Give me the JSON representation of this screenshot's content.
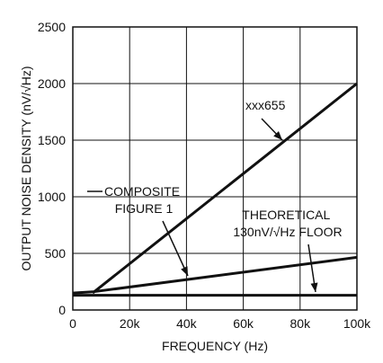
{
  "chart_data": {
    "type": "line",
    "title": "",
    "xlabel": "FREQUENCY (Hz)",
    "ylabel": "OUTPUT NOISE DENSITY (nV/√Hz)",
    "xlim": [
      0,
      100000
    ],
    "ylim": [
      0,
      2500
    ],
    "grid": true,
    "x_ticks": [
      0,
      20000,
      40000,
      60000,
      80000,
      100000
    ],
    "x_tick_labels": [
      "0",
      "20k",
      "40k",
      "60k",
      "80k",
      "100k"
    ],
    "y_ticks": [
      0,
      500,
      1000,
      1500,
      2000,
      2500
    ],
    "y_tick_labels": [
      "0",
      "500",
      "1000",
      "1500",
      "2000",
      "2500"
    ],
    "series": [
      {
        "name": "xxx655",
        "x": [
          7000,
          100000
        ],
        "y": [
          150,
          2000
        ]
      },
      {
        "name": "COMPOSITE FIGURE 1",
        "x": [
          0,
          7000,
          100000
        ],
        "y": [
          150,
          160,
          465
        ]
      },
      {
        "name": "THEORETICAL 130nV/√Hz FLOOR",
        "x": [
          0,
          100000
        ],
        "y": [
          130,
          130
        ]
      }
    ],
    "annotations": [
      {
        "name": "label-xxx655",
        "lines": [
          "xxx655"
        ]
      },
      {
        "name": "label-composite",
        "lines": [
          "COMPOSITE",
          "FIGURE 1"
        ]
      },
      {
        "name": "label-theoretical",
        "lines": [
          "THEORETICAL",
          "130nV/√Hz FLOOR"
        ]
      }
    ]
  }
}
